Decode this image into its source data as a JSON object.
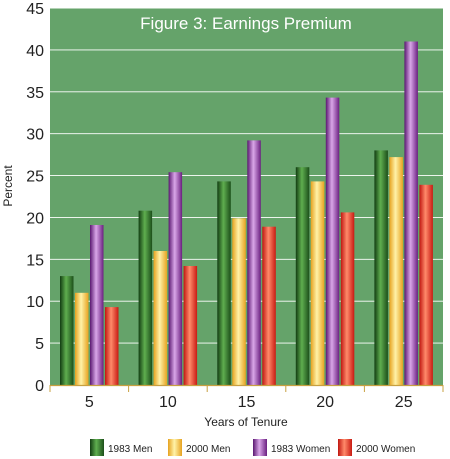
{
  "chart_data": {
    "type": "bar",
    "title": "Figure 3:  Earnings Premium",
    "xlabel": "Years of Tenure",
    "ylabel": "Percent",
    "ylim": [
      0,
      45
    ],
    "yticks": [
      0,
      5,
      10,
      15,
      20,
      25,
      30,
      35,
      40,
      45
    ],
    "categories": [
      "5",
      "10",
      "15",
      "20",
      "25"
    ],
    "series": [
      {
        "name": "1983 Men",
        "values": [
          13,
          20.8,
          24.3,
          26,
          28
        ]
      },
      {
        "name": "2000 Men",
        "values": [
          11,
          16,
          19.9,
          24.3,
          27.2
        ]
      },
      {
        "name": "1983 Women",
        "values": [
          19.1,
          25.4,
          29.2,
          34.3,
          41
        ]
      },
      {
        "name": "2000 Women",
        "values": [
          9.3,
          14.2,
          18.9,
          20.6,
          23.9
        ]
      }
    ],
    "grid": true,
    "legend_position": "bottom",
    "colors": {
      "background": "#65a36a",
      "grid": "#ffffff",
      "1983 Men": "#2f7a2a",
      "2000 Men": "#f7c64a",
      "1983 Women": "#9a3fb0",
      "2000 Women": "#ec2b1f"
    }
  }
}
